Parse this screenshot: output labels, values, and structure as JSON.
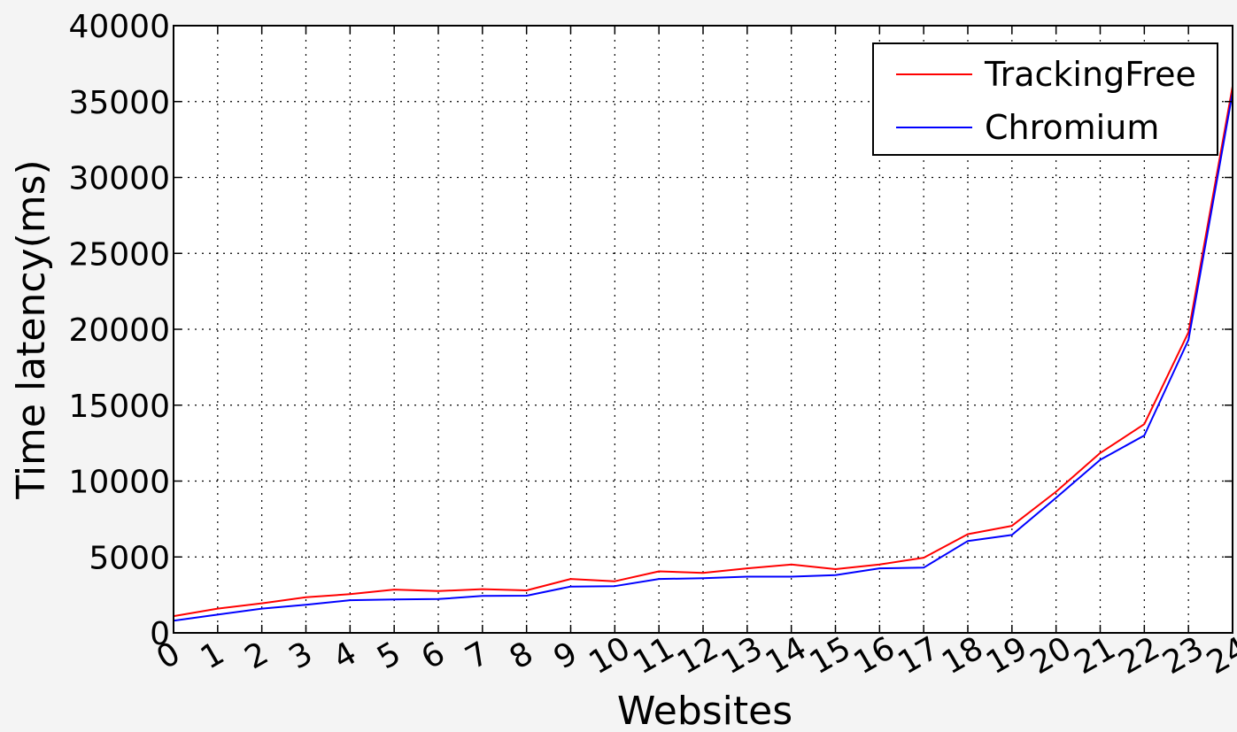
{
  "chart_data": {
    "type": "line",
    "title": "",
    "xlabel": "Websites",
    "ylabel": "Time latency(ms)",
    "x": [
      0,
      1,
      2,
      3,
      4,
      5,
      6,
      7,
      8,
      9,
      10,
      11,
      12,
      13,
      14,
      15,
      16,
      17,
      18,
      19,
      20,
      21,
      22,
      23,
      24
    ],
    "xlim": [
      0,
      24
    ],
    "ylim": [
      0,
      40000
    ],
    "yticks": [
      0,
      5000,
      10000,
      15000,
      20000,
      25000,
      30000,
      35000,
      40000
    ],
    "ytick_labels": [
      "0",
      "5000",
      "10000",
      "15000",
      "20000",
      "25000",
      "30000",
      "35000",
      "40000"
    ],
    "xtick_labels": [
      "0",
      "1",
      "2",
      "3",
      "4",
      "5",
      "6",
      "7",
      "8",
      "9",
      "10",
      "11",
      "12",
      "13",
      "14",
      "15",
      "16",
      "17",
      "18",
      "19",
      "20",
      "21",
      "22",
      "23",
      "24"
    ],
    "grid": true,
    "legend_position": "top-right",
    "series": [
      {
        "name": "TrackingFree",
        "color": "#ff0000",
        "values": [
          1100,
          1600,
          1950,
          2350,
          2550,
          2850,
          2750,
          2880,
          2800,
          3550,
          3400,
          4050,
          3950,
          4250,
          4500,
          4200,
          4500,
          4950,
          6500,
          7050,
          9300,
          11850,
          13750,
          19800,
          36000
        ]
      },
      {
        "name": "Chromium",
        "color": "#0000ff",
        "values": [
          800,
          1200,
          1600,
          1850,
          2150,
          2200,
          2230,
          2430,
          2450,
          3050,
          3080,
          3550,
          3600,
          3700,
          3700,
          3800,
          4250,
          4300,
          6050,
          6450,
          8900,
          11400,
          13000,
          19300,
          35600
        ]
      }
    ]
  }
}
